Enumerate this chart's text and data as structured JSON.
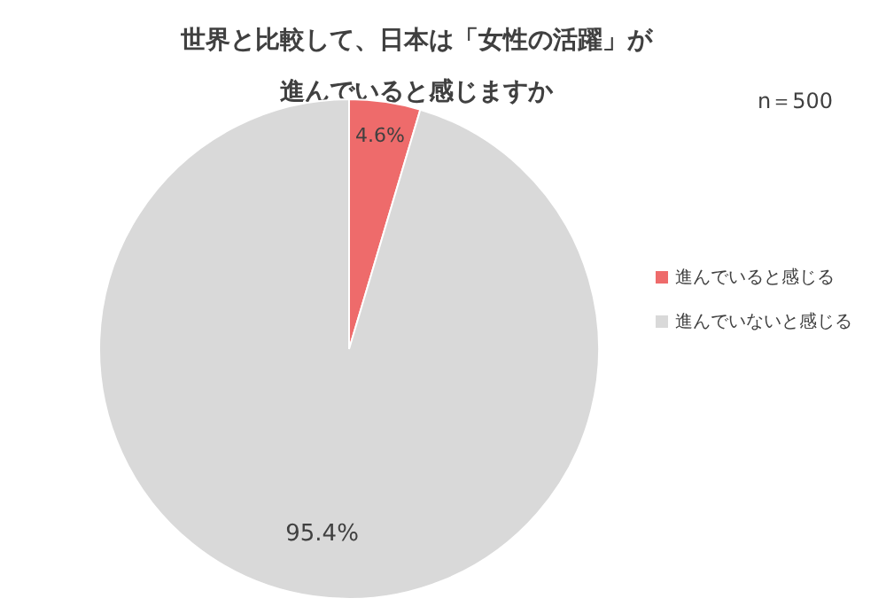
{
  "chart_data": {
    "type": "pie",
    "title": "世界と比較して、日本は「女性の活躍」が進んでいると感じますか",
    "annotations": [
      "n＝500"
    ],
    "categories": [
      "進んでいると感じる",
      "進んでいないと感じる"
    ],
    "values": [
      4.6,
      95.4
    ],
    "value_labels": [
      "4.6%",
      "95.4%"
    ],
    "colors": [
      "#ee6b6b",
      "#d9d9d9"
    ],
    "legend": "right"
  }
}
